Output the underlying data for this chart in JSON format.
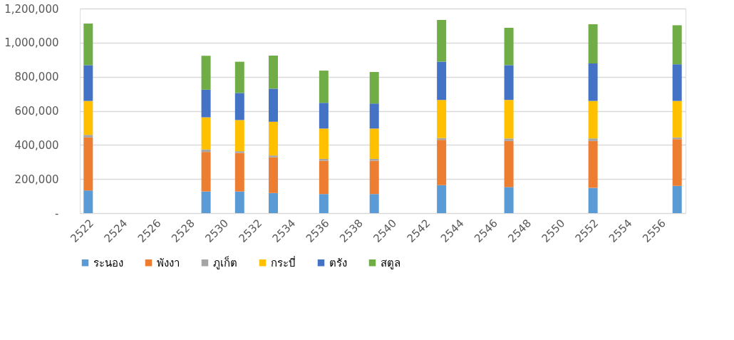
{
  "chart_data": {
    "type": "bar",
    "stacked": true,
    "categories": [
      "2522",
      null,
      "2524",
      null,
      "2526",
      null,
      "2528",
      null,
      "2530",
      null,
      "2532",
      null,
      "2534",
      null,
      "2536",
      null,
      "2538",
      null,
      "2540",
      null,
      "2542",
      null,
      "2544",
      null,
      "2546",
      null,
      "2548",
      null,
      "2550",
      null,
      "2552",
      null,
      "2554",
      null,
      "2556",
      null
    ],
    "series": [
      {
        "name": "ระนอง",
        "color": "#5b9bd5",
        "values": [
          133000,
          null,
          null,
          null,
          null,
          null,
          null,
          127000,
          null,
          127000,
          null,
          118000,
          null,
          null,
          112000,
          null,
          null,
          112000,
          null,
          null,
          null,
          164000,
          null,
          null,
          null,
          153000,
          null,
          null,
          null,
          null,
          148000,
          null,
          null,
          null,
          null,
          160000
        ]
      },
      {
        "name": "พังงา",
        "color": "#ed7d31",
        "values": [
          311000,
          null,
          null,
          null,
          null,
          null,
          null,
          232000,
          null,
          226000,
          null,
          210000,
          null,
          null,
          195000,
          null,
          null,
          195000,
          null,
          null,
          null,
          266000,
          null,
          null,
          null,
          270000,
          null,
          null,
          null,
          null,
          275000,
          null,
          null,
          null,
          null,
          274000
        ]
      },
      {
        "name": "ภูเก็ต",
        "color": "#a5a5a5",
        "values": [
          15000,
          null,
          null,
          null,
          null,
          null,
          null,
          14000,
          null,
          10000,
          null,
          10000,
          null,
          null,
          11000,
          null,
          null,
          11000,
          null,
          null,
          null,
          10000,
          null,
          null,
          null,
          15000,
          null,
          null,
          null,
          null,
          15000,
          null,
          null,
          null,
          null,
          10000
        ]
      },
      {
        "name": "กระบี่",
        "color": "#ffc000",
        "values": [
          199000,
          null,
          null,
          null,
          null,
          null,
          null,
          189000,
          null,
          183000,
          null,
          198000,
          null,
          null,
          178000,
          null,
          null,
          178000,
          null,
          null,
          null,
          224000,
          null,
          null,
          null,
          226000,
          null,
          null,
          null,
          null,
          220000,
          null,
          null,
          null,
          null,
          214000
        ]
      },
      {
        "name": "ตรัง",
        "color": "#4472c4",
        "values": [
          210000,
          null,
          null,
          null,
          null,
          null,
          null,
          162000,
          null,
          159000,
          null,
          194000,
          null,
          null,
          151000,
          null,
          null,
          147000,
          null,
          null,
          null,
          224000,
          null,
          null,
          null,
          204000,
          null,
          null,
          null,
          null,
          220000,
          null,
          null,
          null,
          null,
          215000
        ]
      },
      {
        "name": "สตูล",
        "color": "#70ad47",
        "values": [
          244000,
          null,
          null,
          null,
          null,
          null,
          null,
          199000,
          null,
          183000,
          null,
          194000,
          null,
          null,
          189000,
          null,
          null,
          185000,
          null,
          null,
          null,
          245000,
          null,
          null,
          null,
          219000,
          null,
          null,
          null,
          null,
          230000,
          null,
          null,
          null,
          null,
          229000
        ]
      }
    ],
    "ylim": [
      0,
      1200000
    ],
    "yticks": [
      {
        "value": 0,
        "label": "-"
      },
      {
        "value": 200000,
        "label": "200,000"
      },
      {
        "value": 400000,
        "label": "400,000"
      },
      {
        "value": 600000,
        "label": "600,000"
      },
      {
        "value": 800000,
        "label": "800,000"
      },
      {
        "value": 1000000,
        "label": "1,000,000"
      },
      {
        "value": 1200000,
        "label": "1,200,000"
      }
    ],
    "grid": "y",
    "legend": "bottom"
  }
}
